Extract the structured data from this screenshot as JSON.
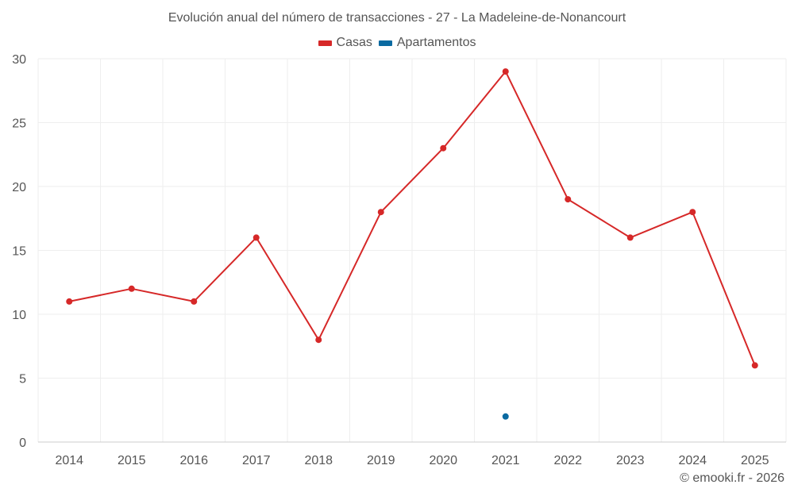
{
  "chart_data": {
    "type": "line",
    "title": "Evolución anual del número de transacciones - 27 - La Madeleine-de-Nonancourt",
    "categories": [
      "2014",
      "2015",
      "2016",
      "2017",
      "2018",
      "2019",
      "2020",
      "2021",
      "2022",
      "2023",
      "2024",
      "2025"
    ],
    "series": [
      {
        "name": "Casas",
        "color": "#d62828",
        "values": [
          11,
          12,
          11,
          16,
          8,
          18,
          23,
          29,
          19,
          16,
          18,
          6
        ]
      },
      {
        "name": "Apartamentos",
        "color": "#0a6aa1",
        "values": [
          null,
          null,
          null,
          null,
          null,
          null,
          null,
          2,
          null,
          null,
          null,
          null
        ]
      }
    ],
    "yticks": [
      "0",
      "5",
      "10",
      "15",
      "20",
      "25",
      "30"
    ],
    "ylim": [
      0,
      30
    ],
    "xlabel": "",
    "ylabel": "",
    "grid": true,
    "legend_position": "top-center"
  },
  "credit": "© emooki.fr - 2026"
}
